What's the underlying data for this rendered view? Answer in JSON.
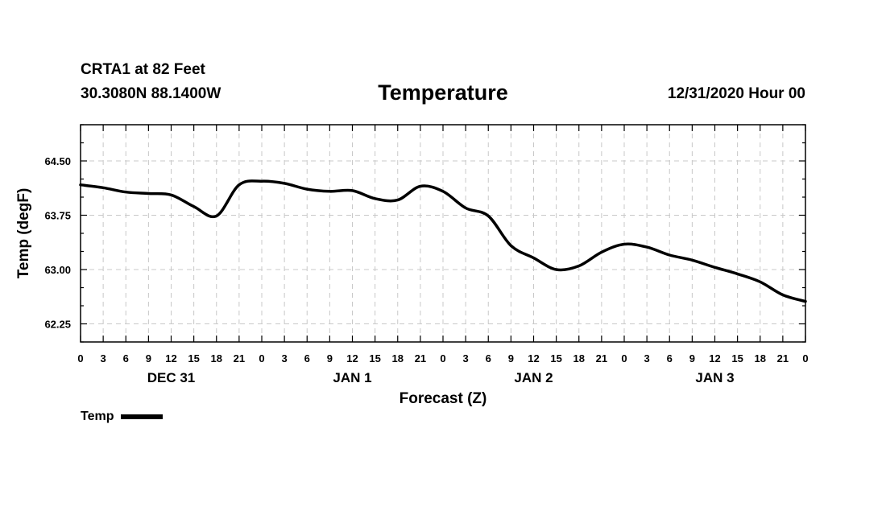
{
  "header": {
    "station": "CRTA1 at 82 Feet",
    "coords": "30.3080N 88.1400W",
    "title": "Temperature",
    "valid": "12/31/2020 Hour 00"
  },
  "chart_data": {
    "type": "line",
    "title": "Temperature",
    "xlabel": "Forecast (Z)",
    "ylabel": "Temp (degF)",
    "ylim": [
      62.0,
      65.0
    ],
    "xlim": [
      0,
      96
    ],
    "grid": true,
    "yticks": [
      "64.50",
      "63.75",
      "63.00",
      "62.25"
    ],
    "ytick_values": [
      64.5,
      63.75,
      63.0,
      62.25
    ],
    "xtick_labels": [
      "0",
      "3",
      "6",
      "9",
      "12",
      "15",
      "18",
      "21",
      "0",
      "3",
      "6",
      "9",
      "12",
      "15",
      "18",
      "21",
      "0",
      "3",
      "6",
      "9",
      "12",
      "15",
      "18",
      "21",
      "0",
      "3",
      "6",
      "9",
      "12",
      "15",
      "18",
      "21",
      "0"
    ],
    "day_labels": [
      {
        "label": "DEC 31",
        "hour": 12
      },
      {
        "label": "JAN 1",
        "hour": 36
      },
      {
        "label": "JAN 2",
        "hour": 60
      },
      {
        "label": "JAN 3",
        "hour": 84
      }
    ],
    "legend": [
      {
        "name": "Temp",
        "position": "bottom-left"
      }
    ],
    "series": [
      {
        "name": "Temp",
        "x": [
          0,
          3,
          6,
          9,
          12,
          15,
          18,
          21,
          24,
          27,
          30,
          33,
          36,
          39,
          42,
          45,
          48,
          51,
          54,
          57,
          60,
          63,
          66,
          69,
          72,
          75,
          78,
          81,
          84,
          87,
          90,
          93,
          96
        ],
        "values": [
          64.17,
          64.13,
          64.07,
          64.05,
          64.03,
          63.87,
          63.74,
          64.17,
          64.22,
          64.19,
          64.11,
          64.08,
          64.09,
          63.98,
          63.96,
          64.15,
          64.08,
          63.85,
          63.74,
          63.33,
          63.16,
          63.0,
          63.05,
          63.24,
          63.35,
          63.31,
          63.2,
          63.13,
          63.03,
          62.94,
          62.83,
          62.65,
          62.56
        ]
      }
    ]
  }
}
